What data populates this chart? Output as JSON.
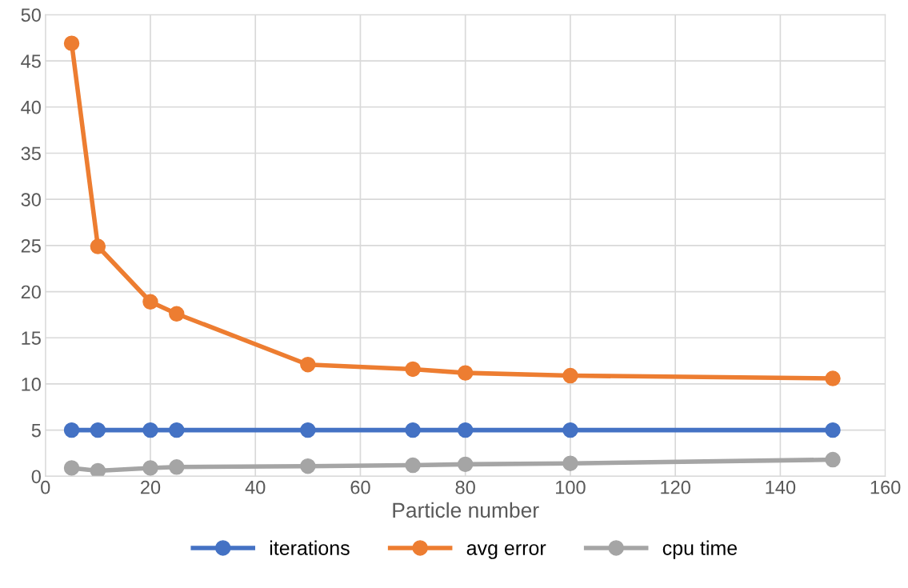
{
  "chart_data": {
    "type": "line",
    "xlabel": "Particle number",
    "x": [
      5,
      10,
      20,
      25,
      50,
      70,
      80,
      100,
      150
    ],
    "series": [
      {
        "name": "iterations",
        "color": "#4472c4",
        "values": [
          5,
          5,
          5,
          5,
          5,
          5,
          5,
          5,
          5
        ]
      },
      {
        "name": "avg error",
        "color": "#ed7d31",
        "values": [
          46.9,
          24.9,
          18.9,
          17.6,
          12.1,
          11.6,
          11.2,
          10.9,
          10.6
        ]
      },
      {
        "name": "cpu time",
        "color": "#a5a5a5",
        "values": [
          0.9,
          0.6,
          0.9,
          1.0,
          1.1,
          1.2,
          1.3,
          1.4,
          1.8
        ]
      }
    ],
    "xlim": [
      0,
      160
    ],
    "xticks": [
      0,
      20,
      40,
      60,
      80,
      100,
      120,
      140,
      160
    ],
    "ylim": [
      0,
      50
    ],
    "yticks": [
      0,
      5,
      10,
      15,
      20,
      25,
      30,
      35,
      40,
      45,
      50
    ],
    "grid": true,
    "legend": "bottom",
    "marker": "circle",
    "line_style": "solid"
  }
}
